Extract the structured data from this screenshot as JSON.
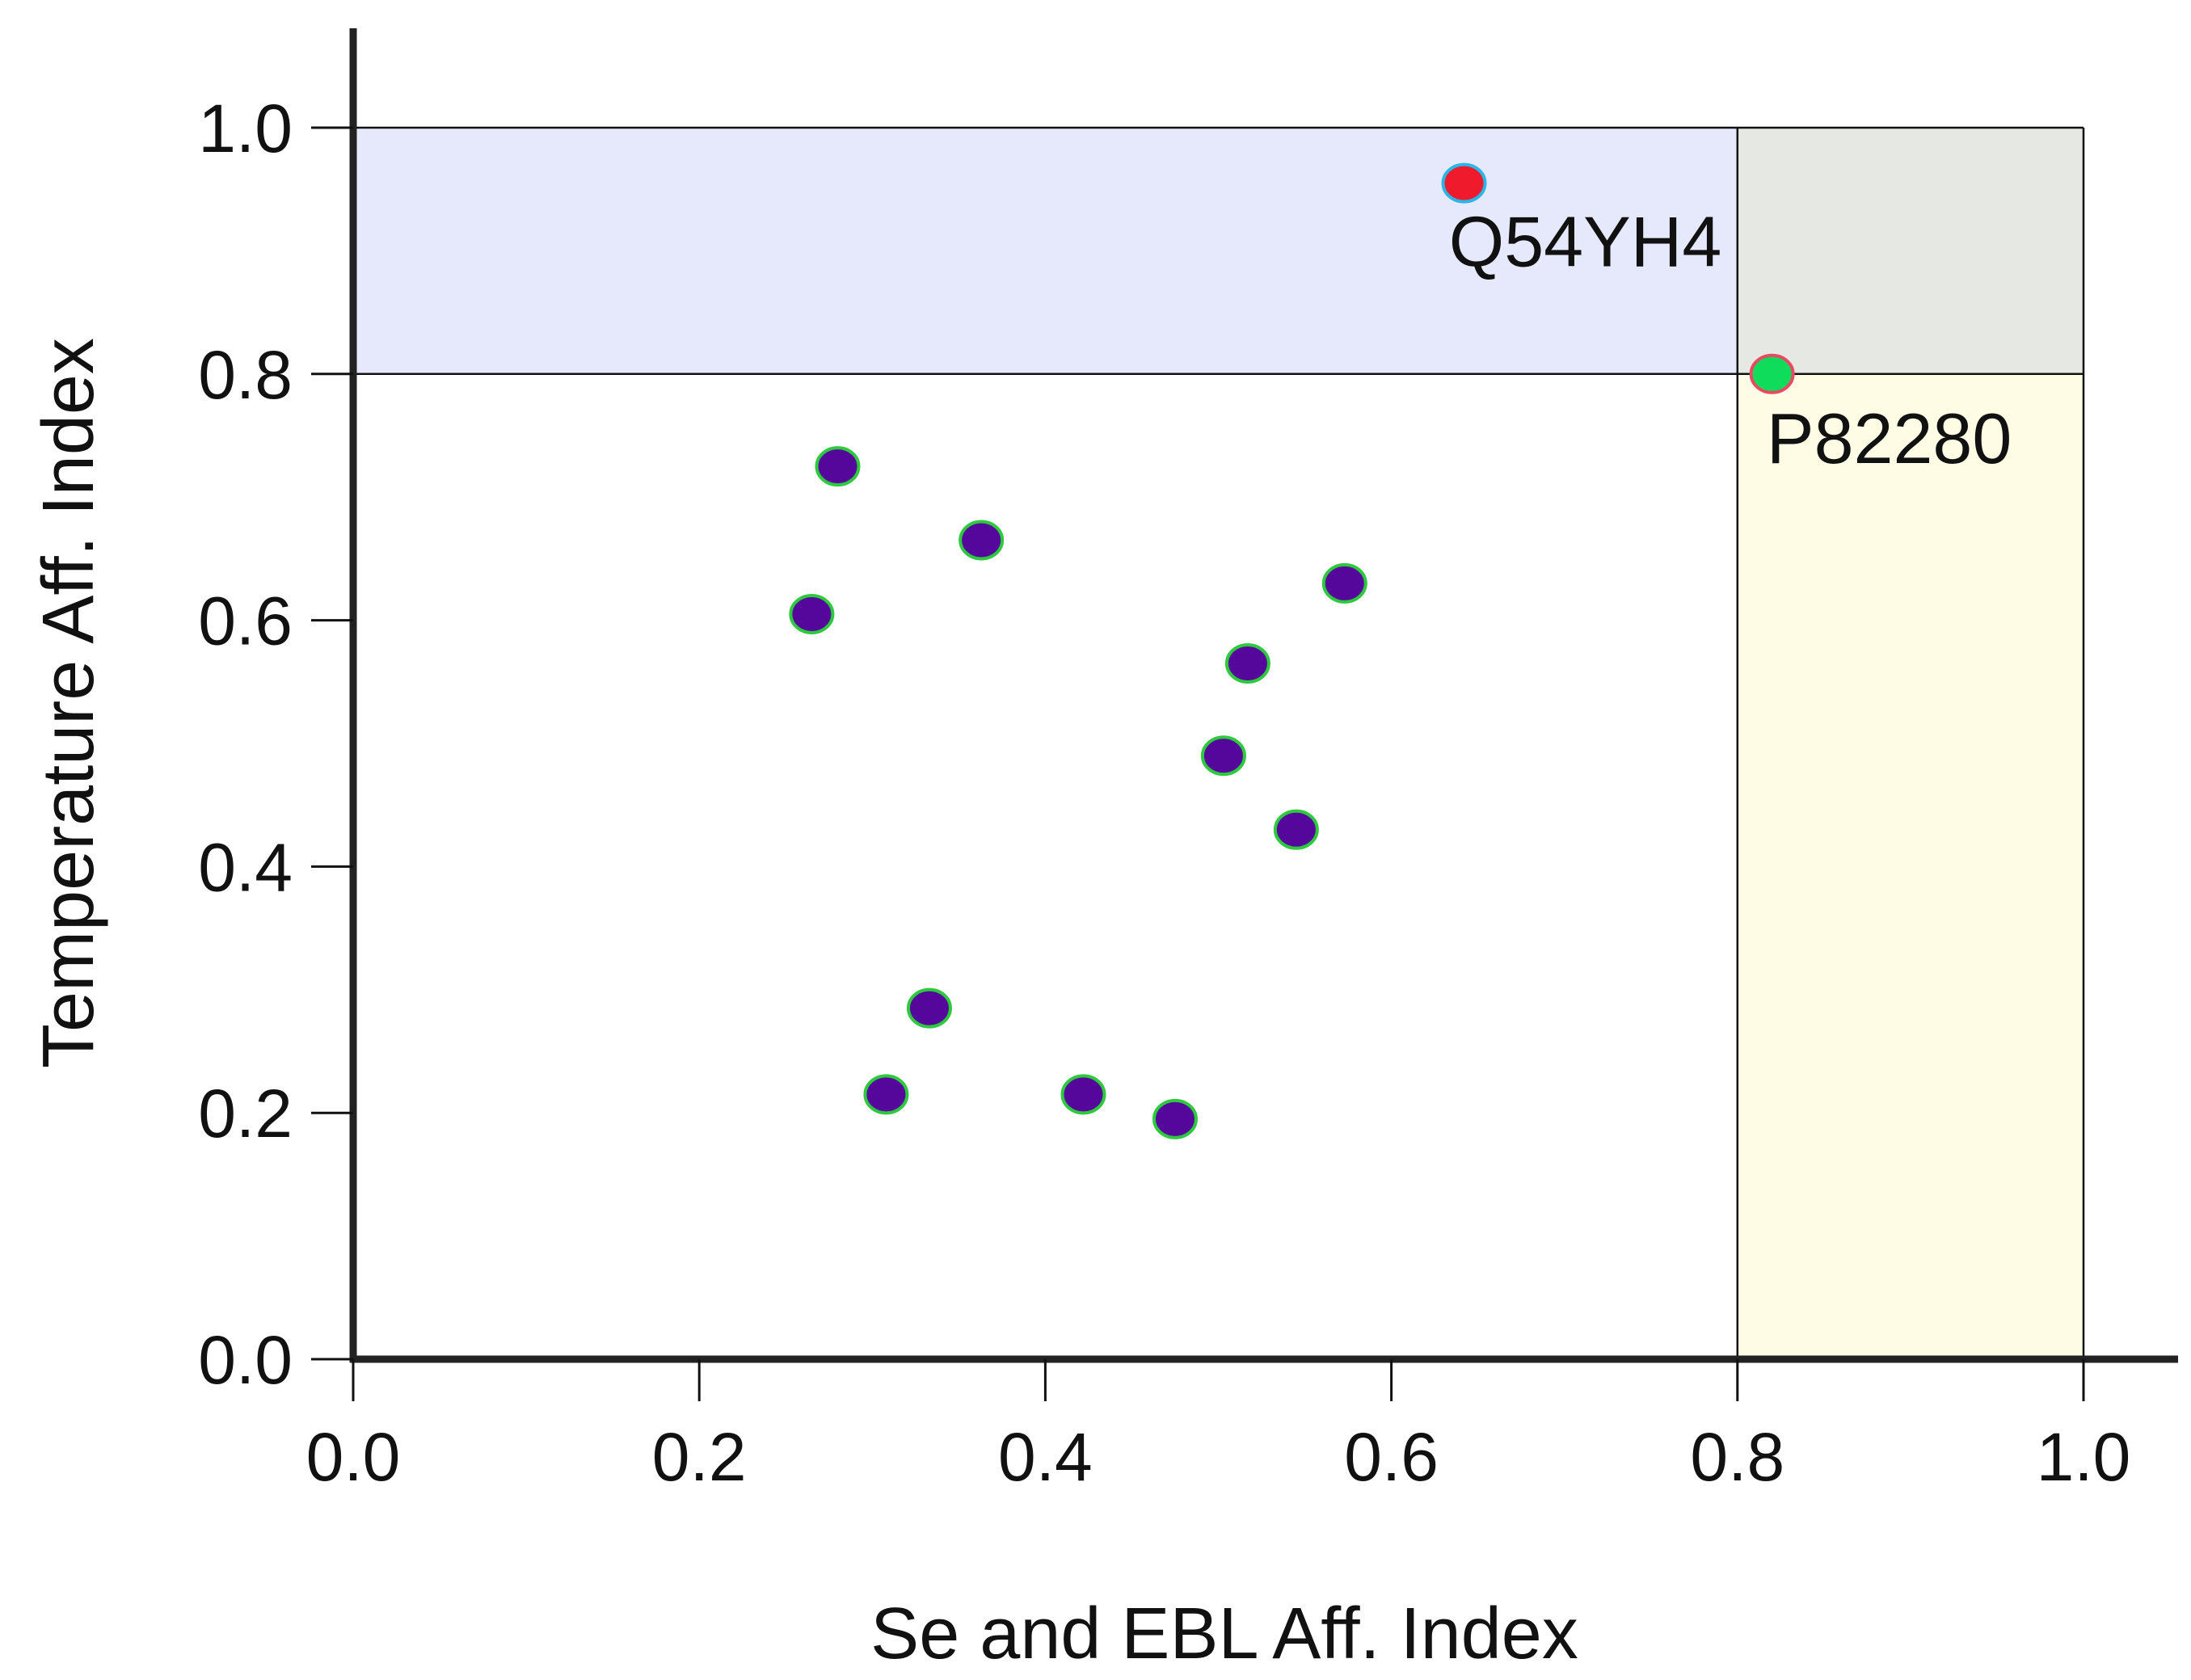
{
  "chart_data": {
    "type": "scatter",
    "title": "",
    "xlabel": "Se and EBL Aff. Index",
    "ylabel": "Temperature Aff. Index",
    "xlim": [
      0.0,
      1.0
    ],
    "ylim": [
      0.0,
      1.0
    ],
    "x_ticks": [
      "0.0",
      "0.2",
      "0.4",
      "0.6",
      "0.8",
      "1.0"
    ],
    "y_ticks": [
      "0.0",
      "0.2",
      "0.4",
      "0.6",
      "0.8",
      "1.0"
    ],
    "grid": false,
    "thresholds": {
      "x": 0.8,
      "y": 0.8
    },
    "regions": [
      {
        "id": "high-temperature",
        "x": [
          0.0,
          0.8
        ],
        "y": [
          0.8,
          1.0
        ],
        "color": "#e6e9fb"
      },
      {
        "id": "high-both",
        "x": [
          0.8,
          1.0
        ],
        "y": [
          0.8,
          1.0
        ],
        "color": "#e6e8e4"
      },
      {
        "id": "high-se-ebl",
        "x": [
          0.8,
          1.0
        ],
        "y": [
          0.0,
          0.8
        ],
        "color": "#fefce4"
      }
    ],
    "points": [
      {
        "x": 0.265,
        "y": 0.605,
        "fill": "#55069b",
        "stroke": "#2fc93f"
      },
      {
        "x": 0.28,
        "y": 0.725,
        "fill": "#55069b",
        "stroke": "#2fc93f"
      },
      {
        "x": 0.308,
        "y": 0.215,
        "fill": "#55069b",
        "stroke": "#2fc93f"
      },
      {
        "x": 0.333,
        "y": 0.285,
        "fill": "#55069b",
        "stroke": "#2fc93f"
      },
      {
        "x": 0.363,
        "y": 0.665,
        "fill": "#55069b",
        "stroke": "#2fc93f"
      },
      {
        "x": 0.422,
        "y": 0.215,
        "fill": "#55069b",
        "stroke": "#2fc93f"
      },
      {
        "x": 0.475,
        "y": 0.195,
        "fill": "#55069b",
        "stroke": "#2fc93f"
      },
      {
        "x": 0.503,
        "y": 0.49,
        "fill": "#55069b",
        "stroke": "#2fc93f"
      },
      {
        "x": 0.517,
        "y": 0.565,
        "fill": "#55069b",
        "stroke": "#2fc93f"
      },
      {
        "x": 0.545,
        "y": 0.43,
        "fill": "#55069b",
        "stroke": "#2fc93f"
      },
      {
        "x": 0.573,
        "y": 0.63,
        "fill": "#55069b",
        "stroke": "#2fc93f"
      },
      {
        "x": 0.642,
        "y": 0.955,
        "fill": "#ef1a2c",
        "stroke": "#2ab6e6",
        "label": "Q54YH4"
      },
      {
        "x": 0.82,
        "y": 0.8,
        "fill": "#0fdc5a",
        "stroke": "#e84a64",
        "label": "P82280"
      }
    ]
  }
}
